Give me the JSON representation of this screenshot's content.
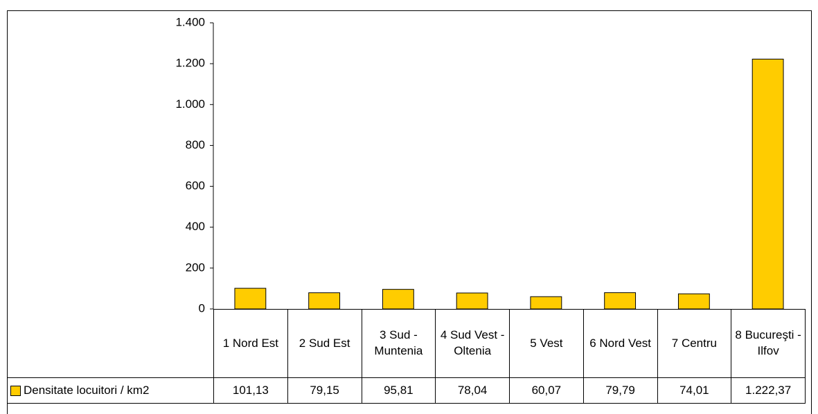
{
  "chart_data": {
    "type": "bar",
    "categories": [
      "1 Nord Est",
      "2 Sud Est",
      "3 Sud - Muntenia",
      "4 Sud Vest - Oltenia",
      "5 Vest",
      "6 Nord Vest",
      "7 Centru",
      "8 Bucureşti - Ilfov"
    ],
    "series": [
      {
        "name": "Densitate locuitori / km2",
        "color": "#ffcc00",
        "values": [
          101.13,
          79.15,
          95.81,
          78.04,
          60.07,
          79.79,
          74.01,
          1222.37
        ],
        "value_labels": [
          "101,13",
          "79,15",
          "95,81",
          "78,04",
          "60,07",
          "79,79",
          "74,01",
          "1.222,37"
        ]
      }
    ],
    "ylim": [
      0,
      1400
    ],
    "yticks": [
      0,
      200,
      400,
      600,
      800,
      {
        "value": 1000,
        "label": "1.000"
      },
      {
        "value": 1200,
        "label": "1.200"
      },
      {
        "value": 1400,
        "label": "1.400"
      }
    ],
    "grid": false
  }
}
